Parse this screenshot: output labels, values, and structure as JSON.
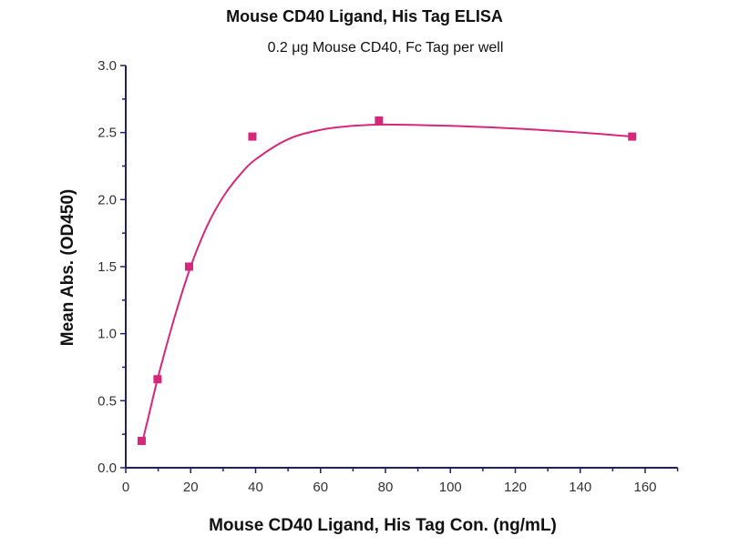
{
  "chart_data": {
    "type": "scatter",
    "title": "Mouse CD40 Ligand, His Tag ELISA",
    "subtitle": "0.2 μg Mouse CD40, Fc Tag per well",
    "xlabel": "Mouse CD40 Ligand, His Tag Con. (ng/mL)",
    "ylabel": "Mean Abs. (OD450)",
    "xlim": [
      0,
      170
    ],
    "ylim": [
      0,
      3.0
    ],
    "xticks": [
      "0",
      "20",
      "40",
      "60",
      "80",
      "100",
      "120",
      "140",
      "160"
    ],
    "yticks": [
      "0.0",
      "0.5",
      "1.0",
      "1.5",
      "2.0",
      "2.5",
      "3.0"
    ],
    "grid": false,
    "series": [
      {
        "name": "data",
        "x": [
          4.9,
          9.8,
          19.5,
          39,
          78,
          156
        ],
        "y": [
          0.2,
          0.66,
          1.5,
          2.47,
          2.59,
          2.47
        ],
        "color": "#d6287a"
      }
    ],
    "fit_curve": {
      "x": [
        4.9,
        7,
        10,
        15,
        20,
        25,
        30,
        35,
        40,
        50,
        60,
        70,
        80,
        100,
        120,
        140,
        156
      ],
      "y": [
        0.17,
        0.38,
        0.68,
        1.12,
        1.5,
        1.8,
        2.02,
        2.18,
        2.3,
        2.45,
        2.52,
        2.55,
        2.56,
        2.55,
        2.53,
        2.5,
        2.47
      ],
      "color": "#d6287a"
    },
    "axis_color": "#1f1f6b"
  }
}
